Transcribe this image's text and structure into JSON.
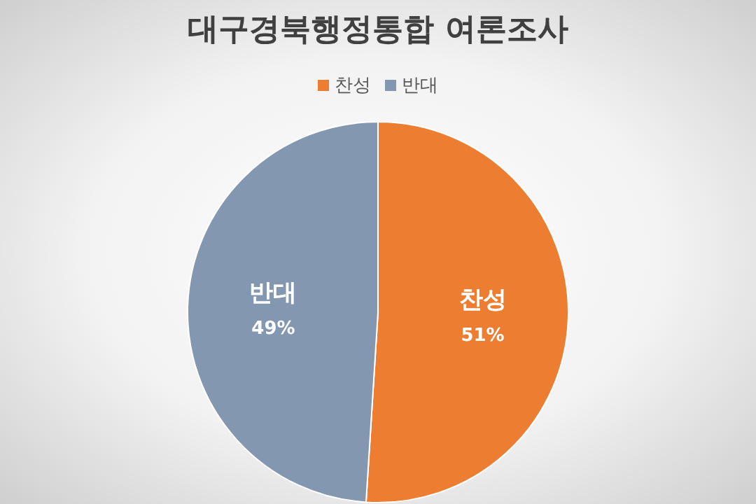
{
  "chart_data": {
    "type": "pie",
    "title": "대구경북행정통합 여론조사",
    "categories": [
      "찬성",
      "반대"
    ],
    "values": [
      51,
      49
    ],
    "value_labels": [
      "51%",
      "49%"
    ],
    "colors": [
      "#ed7d31",
      "#8497b0"
    ],
    "legend": "top"
  }
}
